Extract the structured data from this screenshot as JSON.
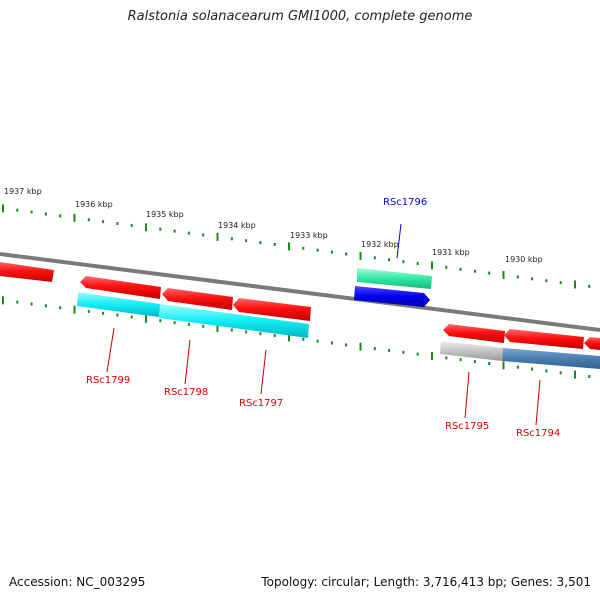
{
  "title": "Ralstonia solanacearum GMI1000, complete genome",
  "footer": {
    "accession": "Accession: NC_003295",
    "summary": "Topology: circular; Length: 3,716,413 bp; Genes: 3,501"
  },
  "kbp_labels": [
    "1937 kbp",
    "1936 kbp",
    "1935 kbp",
    "1934 kbp",
    "1933 kbp",
    "1932 kbp",
    "1931 kbp",
    "1930 kbp"
  ],
  "genes": [
    {
      "name": "RSc1799",
      "color": "#dd0000"
    },
    {
      "name": "RSc1798",
      "color": "#dd0000"
    },
    {
      "name": "RSc1797",
      "color": "#dd0000"
    },
    {
      "name": "RSc1796",
      "color": "#0000cc"
    },
    {
      "name": "RSc1795",
      "color": "#dd0000"
    },
    {
      "name": "RSc1794",
      "color": "#dd0000"
    }
  ],
  "colors": {
    "forward_gene": "#ff0000",
    "reverse_gene": "#ff0000",
    "selected_gene": "#0000ee",
    "cds_cyan": "#00e5ee",
    "cds_green": "#2ee8a0",
    "cds_steelblue": "#4a7fb0",
    "cds_gray": "#bdbdbd",
    "backbone": "#777777",
    "tick": "#1a8a1a"
  }
}
